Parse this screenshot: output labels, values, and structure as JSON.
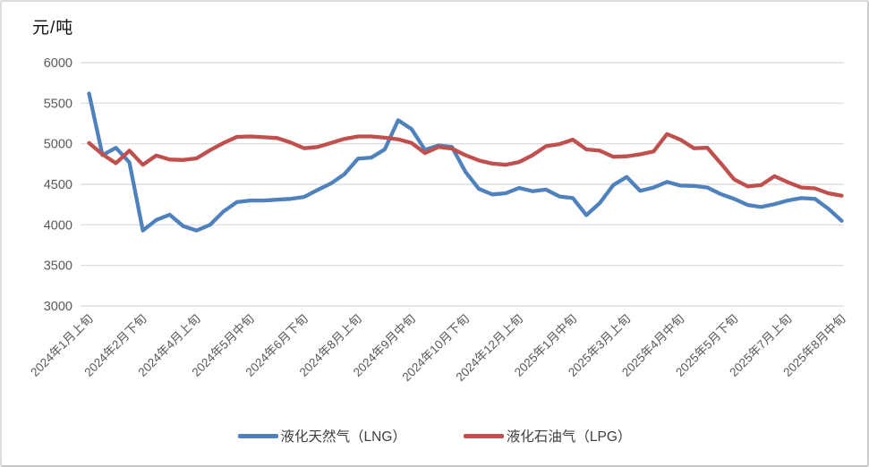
{
  "unit_label": "元/吨",
  "colors": {
    "lng_blue": "#4F81BD",
    "lpg_red": "#C0504D",
    "grid": "#D8D8D8",
    "axis_text": "#595959",
    "background": "#FFFFFF",
    "border": "#DCDCDC"
  },
  "legend": {
    "items": [
      {
        "label": "液化天然气（LNG）",
        "color": "#4F81BD"
      },
      {
        "label": "液化石油气（LPG）",
        "color": "#C0504D"
      }
    ]
  },
  "chart_data": {
    "type": "line",
    "title": "",
    "ylabel": "元/吨",
    "xlabel": "",
    "ylim": [
      3000,
      6000
    ],
    "y_ticks": [
      6000,
      5500,
      5000,
      4500,
      4000,
      3500,
      3000
    ],
    "grid": "horizontal",
    "legend_position": "bottom",
    "x_label_interval": 4,
    "x_tick_labels": [
      "2024年1月上旬",
      "2024年2月下旬",
      "2024年4月上旬",
      "2024年5月中旬",
      "2024年6月下旬",
      "2024年8月上旬",
      "2024年9月中旬",
      "2024年10月下旬",
      "2024年12月上旬",
      "2025年1月中旬",
      "2025年3月上旬",
      "2025年4月中旬",
      "2025年5月下旬",
      "2025年7月上旬",
      "2025年8月中旬"
    ],
    "categories": [
      "2024年1月上旬",
      "2024年1月中旬",
      "2024年1月下旬",
      "2024年2月上旬",
      "2024年2月下旬",
      "2024年3月上旬",
      "2024年3月中旬",
      "2024年3月下旬",
      "2024年4月上旬",
      "2024年4月中旬",
      "2024年4月下旬",
      "2024年5月上旬",
      "2024年5月中旬",
      "2024年5月下旬",
      "2024年6月上旬",
      "2024年6月中旬",
      "2024年6月下旬",
      "2024年7月上旬",
      "2024年7月中旬",
      "2024年7月下旬",
      "2024年8月上旬",
      "2024年8月中旬",
      "2024年8月下旬",
      "2024年9月上旬",
      "2024年9月中旬",
      "2024年9月下旬",
      "2024年10月上旬",
      "2024年10月中旬",
      "2024年10月下旬",
      "2024年11月上旬",
      "2024年11月中旬",
      "2024年11月下旬",
      "2024年12月上旬",
      "2024年12月中旬",
      "2024年12月下旬",
      "2025年1月上旬",
      "2025年1月中旬",
      "2025年1月下旬",
      "2025年2月中旬",
      "2025年2月下旬",
      "2025年3月上旬",
      "2025年3月中旬",
      "2025年3月下旬",
      "2025年4月上旬",
      "2025年4月中旬",
      "2025年4月下旬",
      "2025年5月上旬",
      "2025年5月中旬",
      "2025年5月下旬",
      "2025年6月上旬",
      "2025年6月中旬",
      "2025年6月下旬",
      "2025年7月上旬",
      "2025年7月中旬",
      "2025年7月下旬",
      "2025年8月上旬",
      "2025年8月中旬"
    ],
    "series": [
      {
        "name": "液化天然气（LNG）",
        "color": "#4F81BD",
        "values": [
          5620,
          4860,
          4950,
          4770,
          3930,
          4060,
          4125,
          3985,
          3930,
          4000,
          4165,
          4280,
          4300,
          4300,
          4310,
          4320,
          4345,
          4430,
          4510,
          4625,
          4815,
          4830,
          4930,
          5290,
          5180,
          4925,
          4980,
          4960,
          4655,
          4445,
          4375,
          4390,
          4455,
          4415,
          4435,
          4350,
          4330,
          4120,
          4270,
          4490,
          4590,
          4420,
          4460,
          4530,
          4485,
          4480,
          4460,
          4380,
          4320,
          4245,
          4220,
          4255,
          4300,
          4330,
          4320,
          4200,
          4050
        ]
      },
      {
        "name": "液化石油气（LPG）",
        "color": "#C0504D",
        "values": [
          5010,
          4870,
          4760,
          4915,
          4740,
          4855,
          4805,
          4800,
          4820,
          4920,
          5010,
          5085,
          5090,
          5080,
          5070,
          5015,
          4945,
          4960,
          5010,
          5060,
          5090,
          5090,
          5075,
          5055,
          5010,
          4885,
          4960,
          4940,
          4860,
          4795,
          4755,
          4740,
          4775,
          4860,
          4970,
          4995,
          5050,
          4930,
          4915,
          4840,
          4845,
          4870,
          4905,
          5120,
          5050,
          4945,
          4950,
          4760,
          4560,
          4475,
          4490,
          4600,
          4525,
          4460,
          4450,
          4390,
          4360
        ]
      }
    ]
  }
}
